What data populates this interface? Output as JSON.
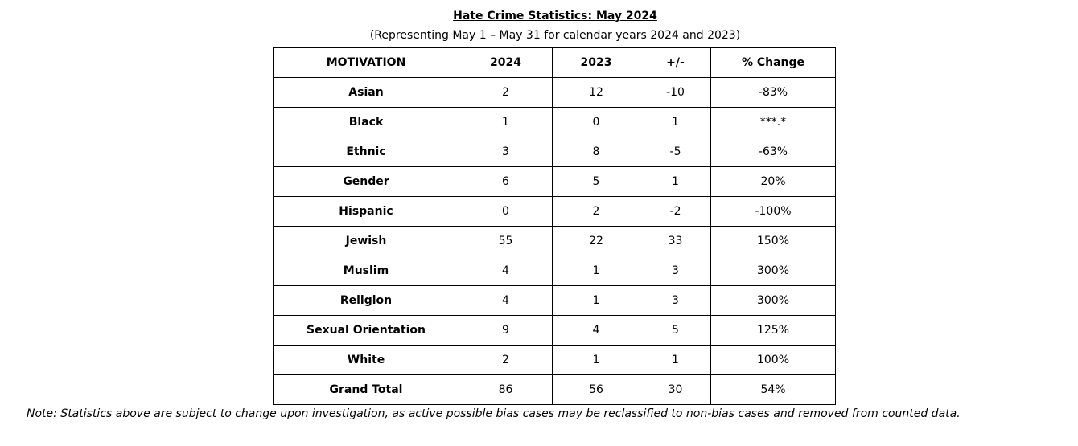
{
  "title": "Hate Crime Statistics: May 2024",
  "subtitle": "(Representing May 1 – May 31 for calendar years 2024 and 2023)",
  "table": {
    "header": [
      "MOTIVATION",
      "2024",
      "2023",
      "+/-",
      "% Change"
    ],
    "rows": [
      [
        "Asian",
        "2",
        "12",
        "-10",
        "-83%"
      ],
      [
        "Black",
        "1",
        "0",
        "1",
        "***.*"
      ],
      [
        "Ethnic",
        "3",
        "8",
        "-5",
        "-63%"
      ],
      [
        "Gender",
        "6",
        "5",
        "1",
        "20%"
      ],
      [
        "Hispanic",
        "0",
        "2",
        "-2",
        "-100%"
      ],
      [
        "Jewish",
        "55",
        "22",
        "33",
        "150%"
      ],
      [
        "Muslim",
        "4",
        "1",
        "3",
        "300%"
      ],
      [
        "Religion",
        "4",
        "1",
        "3",
        "300%"
      ],
      [
        "Sexual Orientation",
        "9",
        "4",
        "5",
        "125%"
      ],
      [
        "White",
        "2",
        "1",
        "1",
        "100%"
      ],
      [
        "Grand Total",
        "86",
        "56",
        "30",
        "54%"
      ]
    ]
  },
  "note": "Note: Statistics above are subject to change upon investigation, as active possible bias cases may be reclassified to non-bias cases and removed from counted data."
}
